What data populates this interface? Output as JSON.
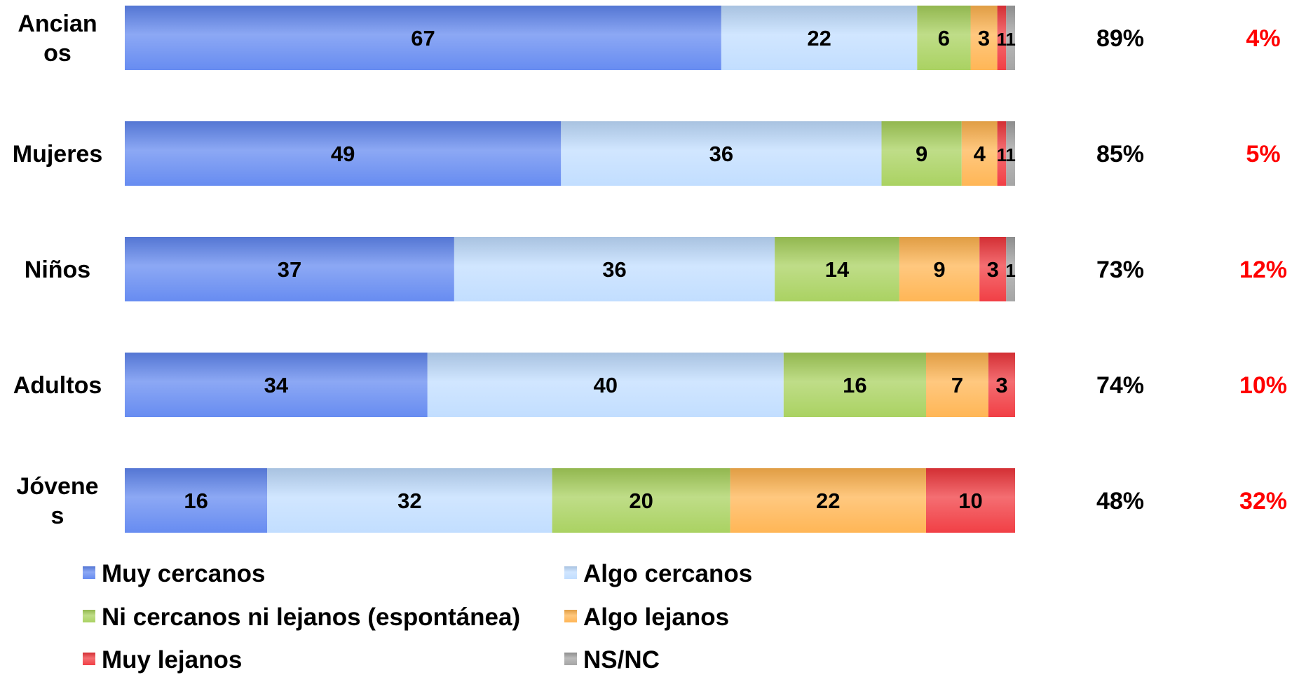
{
  "chart_data": {
    "type": "bar",
    "orientation": "horizontal",
    "stacked": true,
    "categories": [
      "Ancianos",
      "Mujeres",
      "Niños",
      "Adultos",
      "Jóvenes"
    ],
    "category_display": [
      [
        "Ancian",
        "os"
      ],
      [
        "Mujeres"
      ],
      [
        "Niños"
      ],
      [
        "Adultos"
      ],
      [
        "Jóvene",
        "s"
      ]
    ],
    "series": [
      {
        "name": "Muy cercanos",
        "color": "#5f86f0",
        "values": [
          67,
          49,
          37,
          34,
          16
        ]
      },
      {
        "name": "Algo cercanos",
        "color": "#bfdcff",
        "values": [
          22,
          36,
          36,
          40,
          32
        ]
      },
      {
        "name": "Ni cercanos ni lejanos (espontánea)",
        "color": "#a6d05a",
        "values": [
          6,
          9,
          14,
          16,
          20
        ]
      },
      {
        "name": "Algo lejanos",
        "color": "#ffb24d",
        "values": [
          3,
          4,
          9,
          7,
          22
        ]
      },
      {
        "name": "Muy lejanos",
        "color": "#f0353b",
        "values": [
          1,
          1,
          3,
          3,
          10
        ]
      },
      {
        "name": "NS/NC",
        "color": "#a0a0a0",
        "values": [
          1,
          1,
          1,
          0,
          0
        ]
      }
    ],
    "close_totals": [
      "89%",
      "85%",
      "73%",
      "74%",
      "48%"
    ],
    "far_totals": [
      "4%",
      "5%",
      "12%",
      "10%",
      "32%"
    ],
    "xlim": [
      0,
      100
    ],
    "grid": false,
    "legend_position": "bottom"
  }
}
